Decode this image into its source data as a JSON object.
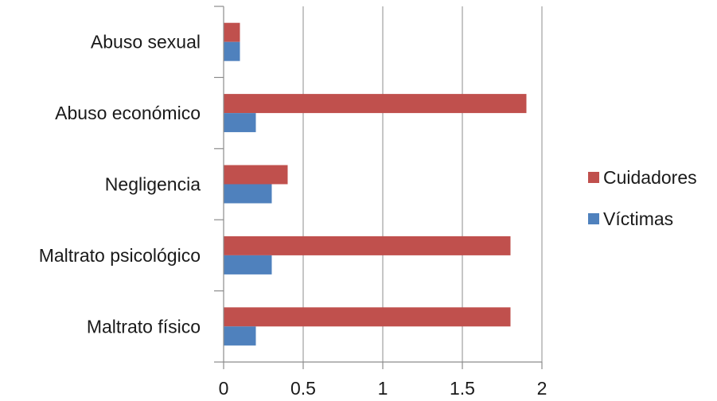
{
  "chart_data": {
    "type": "bar",
    "orientation": "horizontal",
    "categories": [
      "Abuso sexual",
      "Abuso económico",
      "Negligencia",
      "Maltrato psicológico",
      "Maltrato físico"
    ],
    "series": [
      {
        "name": "Cuidadores",
        "color": "#c0504d",
        "values": [
          0.1,
          1.9,
          0.4,
          1.8,
          1.8
        ]
      },
      {
        "name": "Víctimas",
        "color": "#4f81bd",
        "values": [
          0.1,
          0.2,
          0.3,
          0.3,
          0.2
        ]
      }
    ],
    "xlim": [
      0,
      2
    ],
    "xticks": [
      0,
      0.5,
      1,
      1.5,
      2
    ],
    "xtick_labels": [
      "0",
      "0.5",
      "1",
      "1.5",
      "2"
    ],
    "grid": "vertical",
    "legend": "right",
    "title": "",
    "xlabel": "",
    "ylabel": ""
  }
}
